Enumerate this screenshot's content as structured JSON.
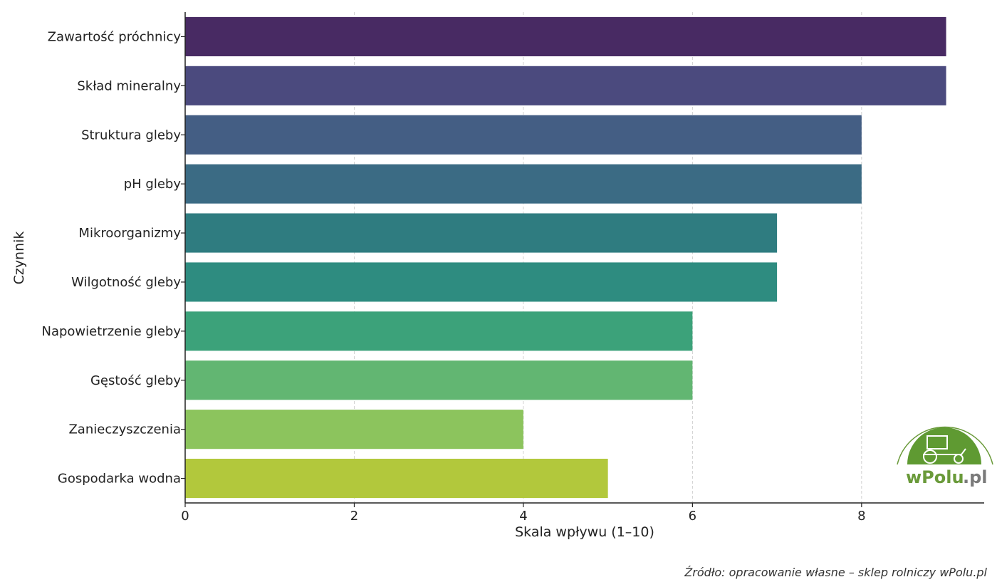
{
  "chart_data": {
    "type": "bar",
    "orientation": "horizontal",
    "categories": [
      "Zawartość próchnicy",
      "Skład mineralny",
      "Struktura gleby",
      "pH gleby",
      "Mikroorganizmy",
      "Wilgotność gleby",
      "Napowietrzenie gleby",
      "Gęstość gleby",
      "Zanieczyszczenia",
      "Gospodarka wodna"
    ],
    "values": [
      9,
      9,
      8,
      8,
      7,
      7,
      6,
      6,
      4,
      5
    ],
    "colors": [
      "#482a63",
      "#4b4a7e",
      "#445e84",
      "#3b6b84",
      "#2f7c80",
      "#2e8c80",
      "#3ca27a",
      "#62b672",
      "#8cc45d",
      "#b2c83c"
    ],
    "xlabel": "Skala wpływu (1–10)",
    "ylabel": "Czynnik",
    "xlim": [
      0,
      9.45
    ],
    "xticks": [
      0,
      2,
      4,
      6,
      8
    ],
    "grid": "x"
  },
  "source": "Źródło: opracowanie własne – sklep rolniczy wPolu.pl",
  "logo": {
    "text_main": "wPolu",
    "text_suffix": ".pl"
  }
}
